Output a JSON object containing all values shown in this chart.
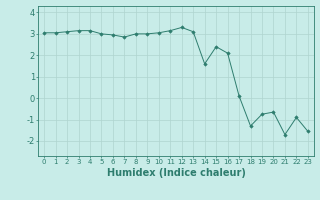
{
  "x": [
    0,
    1,
    2,
    3,
    4,
    5,
    6,
    7,
    8,
    9,
    10,
    11,
    12,
    13,
    14,
    15,
    16,
    17,
    18,
    19,
    20,
    21,
    22,
    23
  ],
  "y": [
    3.05,
    3.05,
    3.1,
    3.15,
    3.15,
    3.0,
    2.95,
    2.85,
    3.0,
    3.0,
    3.05,
    3.15,
    3.3,
    3.1,
    1.6,
    2.4,
    2.1,
    0.1,
    -1.3,
    -0.75,
    -0.65,
    -1.7,
    -0.9,
    -1.55
  ],
  "line_color": "#2e7d6e",
  "marker": "D",
  "marker_size": 1.8,
  "bg_color": "#c8ece8",
  "grid_color": "#afd4cf",
  "xlabel": "Humidex (Indice chaleur)",
  "ylim": [
    -2.7,
    4.3
  ],
  "xlim": [
    -0.5,
    23.5
  ],
  "yticks": [
    -2,
    -1,
    0,
    1,
    2,
    3,
    4
  ],
  "xticks": [
    0,
    1,
    2,
    3,
    4,
    5,
    6,
    7,
    8,
    9,
    10,
    11,
    12,
    13,
    14,
    15,
    16,
    17,
    18,
    19,
    20,
    21,
    22,
    23
  ],
  "tick_color": "#2e7d6e",
  "xlabel_fontsize": 7.0,
  "ytick_fontsize": 6.0,
  "xtick_fontsize": 5.0
}
